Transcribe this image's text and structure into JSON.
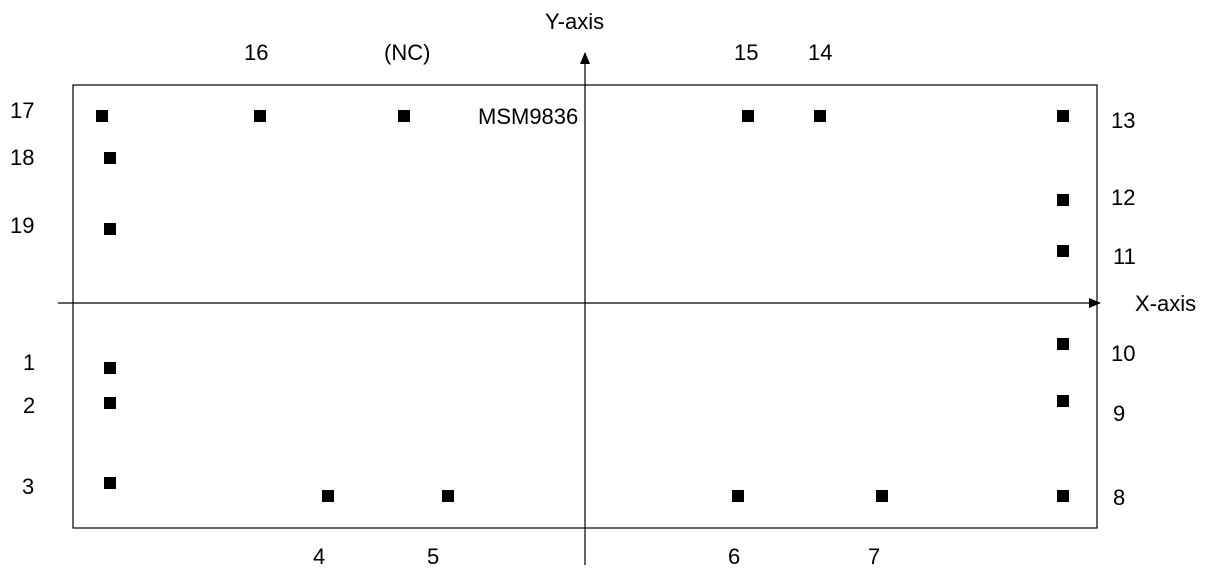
{
  "diagram": {
    "chip_name": "MSM9836",
    "x_axis_label": "X-axis",
    "y_axis_label": "Y-axis",
    "colors": {
      "stroke": "#000000",
      "pad": "#000000",
      "background": "#ffffff"
    },
    "pads": [
      {
        "id": "1",
        "label": "1"
      },
      {
        "id": "2",
        "label": "2"
      },
      {
        "id": "3",
        "label": "3"
      },
      {
        "id": "4",
        "label": "4"
      },
      {
        "id": "5",
        "label": "5"
      },
      {
        "id": "6",
        "label": "6"
      },
      {
        "id": "7",
        "label": "7"
      },
      {
        "id": "8",
        "label": "8"
      },
      {
        "id": "9",
        "label": "9"
      },
      {
        "id": "10",
        "label": "10"
      },
      {
        "id": "11",
        "label": "11"
      },
      {
        "id": "12",
        "label": "12"
      },
      {
        "id": "13",
        "label": "13"
      },
      {
        "id": "14",
        "label": "14"
      },
      {
        "id": "15",
        "label": "15"
      },
      {
        "id": "nc",
        "label": "(NC)"
      },
      {
        "id": "16",
        "label": "16"
      },
      {
        "id": "17",
        "label": "17"
      },
      {
        "id": "18",
        "label": "18"
      },
      {
        "id": "19",
        "label": "19"
      }
    ]
  }
}
